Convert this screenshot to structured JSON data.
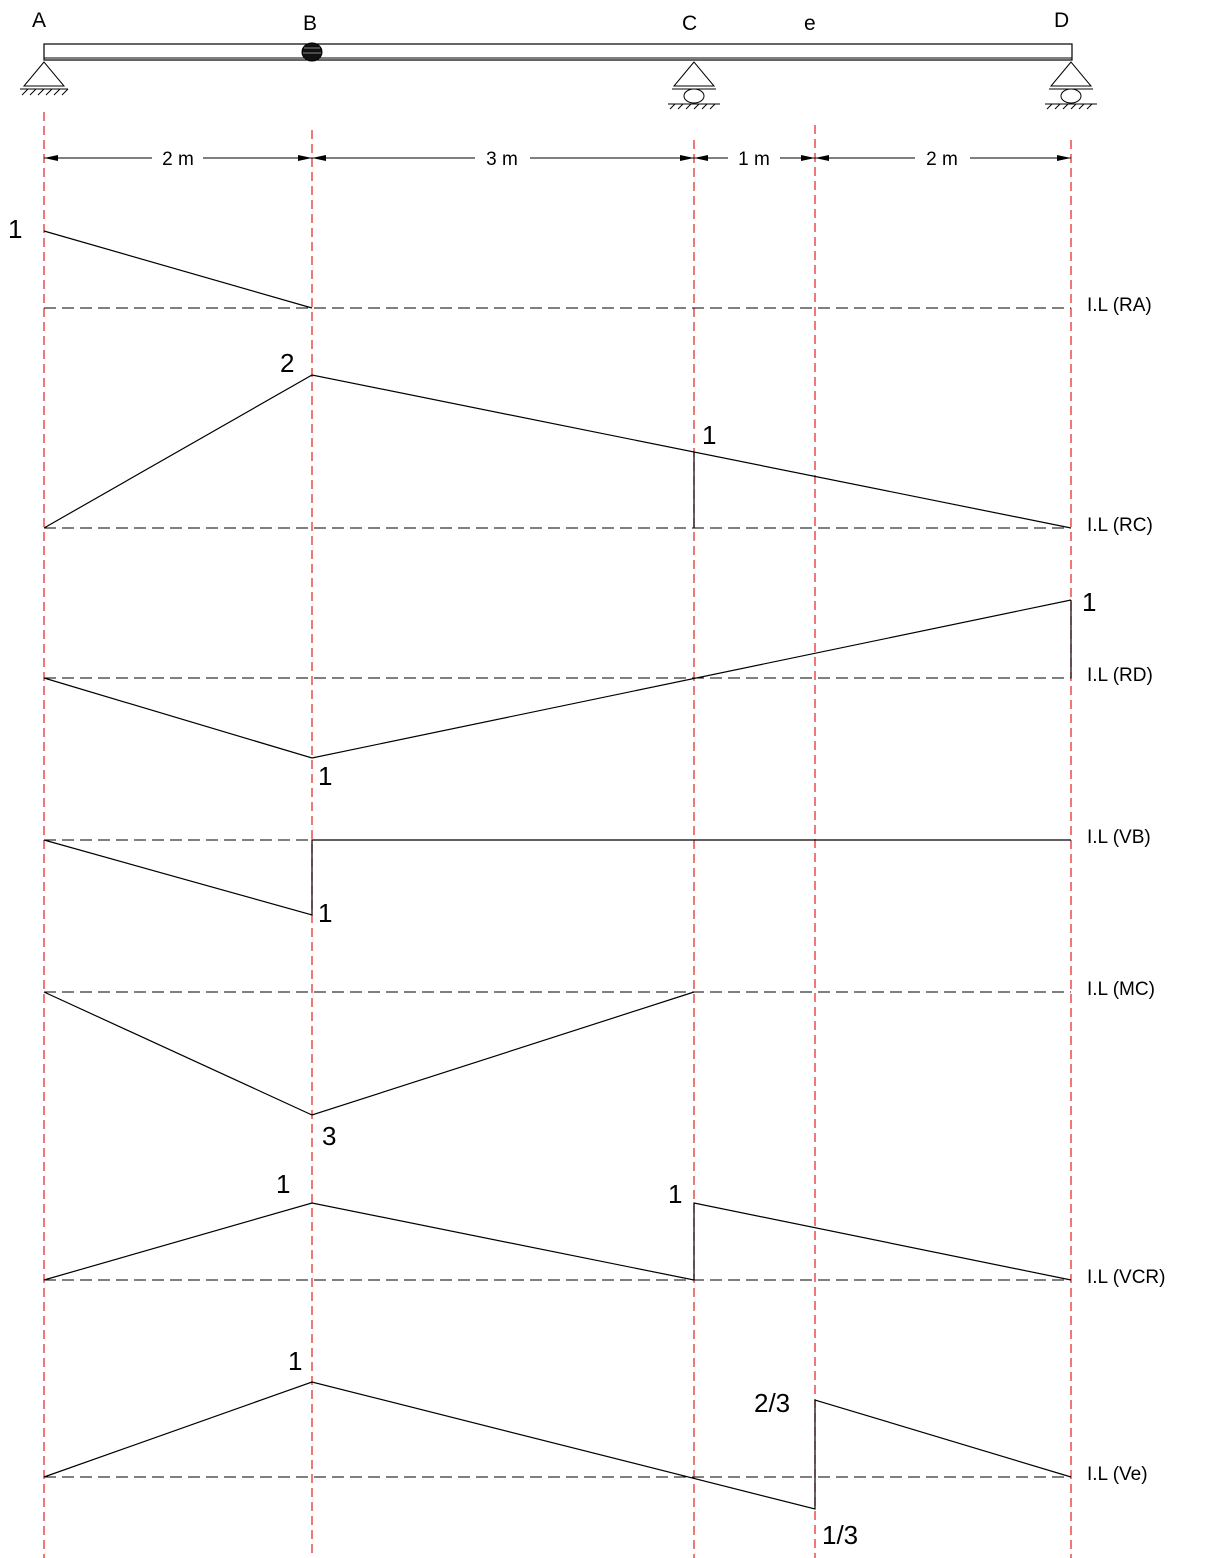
{
  "beam": {
    "points": [
      "A",
      "B",
      "C",
      "e",
      "D"
    ],
    "hinge_at": "B",
    "supports": {
      "A": "pin",
      "C": "roller",
      "D": "roller"
    },
    "spans": [
      "2 m",
      "3 m",
      "1 m",
      "2 m"
    ],
    "span_lengths_m": [
      2,
      3,
      1,
      2
    ]
  },
  "influence_lines": [
    {
      "name": "I.L (RA)",
      "labels": [
        "1"
      ]
    },
    {
      "name": "I.L (RC)",
      "labels": [
        "2",
        "1"
      ]
    },
    {
      "name": "I.L (RD)",
      "labels": [
        "1",
        "1"
      ]
    },
    {
      "name": "I.L (VB)",
      "labels": [
        "1"
      ]
    },
    {
      "name": "I.L (MC)",
      "labels": [
        "3"
      ]
    },
    {
      "name": "I.L (VCR)",
      "labels": [
        "1",
        "1"
      ]
    },
    {
      "name": "I.L (Ve)",
      "labels": [
        "1",
        "2/3",
        "1/3"
      ]
    }
  ],
  "colors": {
    "guide": "#e8312f",
    "line": "#000000"
  }
}
